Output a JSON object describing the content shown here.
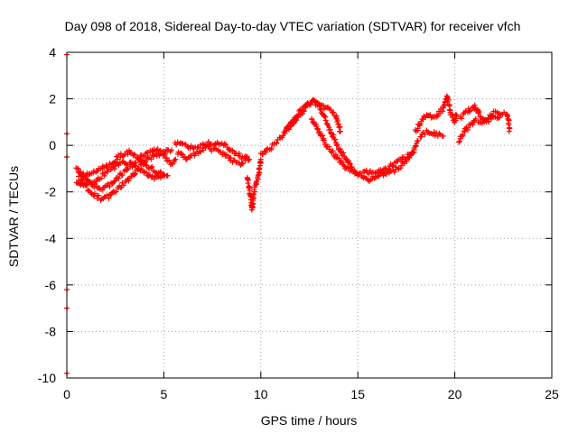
{
  "chart_data": {
    "type": "scatter",
    "title": "Day 098 of 2018, Sidereal Day-to-day VTEC variation (SDTVAR) for receiver vfch",
    "xlabel": "GPS time / hours",
    "ylabel": "SDTVAR / TECUs",
    "xlim": [
      0,
      25
    ],
    "ylim": [
      -10,
      4
    ],
    "xticks": [
      0,
      5,
      10,
      15,
      20,
      25
    ],
    "yticks": [
      -10,
      -8,
      -6,
      -4,
      -2,
      0,
      2,
      4
    ],
    "grid": true,
    "marker": "+",
    "color": "#ff0000",
    "series": [
      {
        "name": "SDTVAR",
        "traces": [
          [
            [
              0.5,
              -1.0
            ],
            [
              0.8,
              -1.3
            ],
            [
              1.2,
              -1.2
            ],
            [
              1.6,
              -1.0
            ],
            [
              2.0,
              -0.9
            ],
            [
              2.4,
              -0.7
            ],
            [
              2.8,
              -0.4
            ],
            [
              3.2,
              -0.3
            ],
            [
              3.6,
              -0.5
            ],
            [
              4.0,
              -0.8
            ],
            [
              4.4,
              -1.0
            ],
            [
              4.8,
              -1.2
            ],
            [
              5.2,
              -1.3
            ]
          ],
          [
            [
              0.5,
              -1.6
            ],
            [
              0.9,
              -1.7
            ],
            [
              1.3,
              -1.6
            ],
            [
              1.7,
              -1.4
            ],
            [
              2.1,
              -1.1
            ],
            [
              2.5,
              -0.9
            ],
            [
              2.9,
              -0.7
            ],
            [
              3.3,
              -0.8
            ],
            [
              3.7,
              -1.0
            ],
            [
              4.1,
              -1.2
            ],
            [
              4.5,
              -1.4
            ],
            [
              4.9,
              -1.3
            ]
          ],
          [
            [
              0.6,
              -1.4
            ],
            [
              1.0,
              -1.8
            ],
            [
              1.4,
              -2.1
            ],
            [
              1.8,
              -2.3
            ],
            [
              2.2,
              -2.2
            ],
            [
              2.6,
              -1.9
            ],
            [
              3.0,
              -1.6
            ],
            [
              3.4,
              -1.3
            ],
            [
              3.8,
              -0.9
            ],
            [
              4.2,
              -0.6
            ],
            [
              4.6,
              -0.4
            ],
            [
              5.0,
              -0.3
            ],
            [
              5.4,
              -0.2
            ]
          ],
          [
            [
              0.6,
              -1.1
            ],
            [
              1.0,
              -1.4
            ],
            [
              1.4,
              -1.7
            ],
            [
              1.8,
              -1.9
            ],
            [
              2.2,
              -1.7
            ],
            [
              2.6,
              -1.4
            ],
            [
              3.0,
              -1.1
            ],
            [
              3.4,
              -0.8
            ],
            [
              3.8,
              -0.5
            ],
            [
              4.2,
              -0.3
            ],
            [
              4.6,
              -0.2
            ],
            [
              5.0,
              -0.4
            ],
            [
              5.4,
              -0.8
            ],
            [
              5.6,
              -0.6
            ]
          ],
          [
            [
              5.6,
              0.1
            ],
            [
              6.0,
              0.0
            ],
            [
              6.5,
              -0.1
            ],
            [
              7.0,
              0.1
            ],
            [
              7.5,
              0.1
            ],
            [
              8.0,
              0.1
            ],
            [
              8.5,
              -0.2
            ],
            [
              9.0,
              -0.5
            ],
            [
              9.4,
              -0.6
            ]
          ],
          [
            [
              5.7,
              -0.3
            ],
            [
              6.2,
              -0.6
            ],
            [
              6.7,
              -0.3
            ],
            [
              7.2,
              -0.1
            ],
            [
              7.7,
              -0.2
            ],
            [
              8.2,
              -0.4
            ],
            [
              8.6,
              -0.7
            ],
            [
              9.0,
              -0.8
            ],
            [
              9.3,
              -0.5
            ]
          ],
          [
            [
              9.3,
              -1.4
            ],
            [
              9.4,
              -1.8
            ],
            [
              9.5,
              -2.3
            ],
            [
              9.55,
              -2.8
            ],
            [
              9.65,
              -2.0
            ],
            [
              9.8,
              -1.5
            ],
            [
              9.9,
              -1.2
            ],
            [
              10.0,
              -0.6
            ]
          ],
          [
            [
              10.0,
              -0.4
            ],
            [
              10.5,
              -0.1
            ],
            [
              11.0,
              0.3
            ],
            [
              11.5,
              0.8
            ],
            [
              12.0,
              1.3
            ],
            [
              12.4,
              1.7
            ],
            [
              12.7,
              1.9
            ],
            [
              13.0,
              1.7
            ],
            [
              13.3,
              1.2
            ],
            [
              13.6,
              0.6
            ],
            [
              14.0,
              -0.1
            ],
            [
              14.4,
              -0.6
            ],
            [
              14.8,
              -1.1
            ],
            [
              15.2,
              -1.3
            ]
          ],
          [
            [
              11.3,
              0.7
            ],
            [
              11.8,
              1.2
            ],
            [
              12.2,
              1.6
            ],
            [
              12.6,
              1.9
            ],
            [
              12.9,
              1.9
            ],
            [
              13.2,
              1.7
            ],
            [
              13.6,
              1.5
            ],
            [
              13.9,
              1.2
            ],
            [
              14.1,
              0.6
            ]
          ],
          [
            [
              12.6,
              1.2
            ],
            [
              13.0,
              0.6
            ],
            [
              13.4,
              0.0
            ],
            [
              13.8,
              -0.4
            ],
            [
              14.2,
              -0.8
            ],
            [
              14.6,
              -1.1
            ],
            [
              15.0,
              -1.3
            ]
          ],
          [
            [
              15.2,
              -1.3
            ],
            [
              15.6,
              -1.5
            ],
            [
              16.0,
              -1.3
            ],
            [
              16.4,
              -1.2
            ],
            [
              16.8,
              -1.1
            ],
            [
              17.2,
              -0.9
            ],
            [
              17.6,
              -0.6
            ],
            [
              17.9,
              -0.2
            ],
            [
              18.1,
              0.2
            ]
          ],
          [
            [
              15.3,
              -1.1
            ],
            [
              15.8,
              -1.2
            ],
            [
              16.3,
              -1.1
            ],
            [
              16.7,
              -0.9
            ],
            [
              17.1,
              -0.7
            ],
            [
              17.5,
              -0.5
            ],
            [
              17.9,
              -0.3
            ]
          ],
          [
            [
              18.0,
              0.6
            ],
            [
              18.3,
              1.1
            ],
            [
              18.6,
              1.3
            ],
            [
              19.0,
              1.2
            ],
            [
              19.4,
              1.6
            ],
            [
              19.6,
              2.1
            ],
            [
              19.8,
              1.4
            ],
            [
              20.0,
              1.0
            ],
            [
              20.1,
              1.3
            ]
          ],
          [
            [
              18.2,
              0.4
            ],
            [
              18.6,
              0.6
            ],
            [
              19.0,
              0.5
            ],
            [
              19.4,
              0.4
            ]
          ],
          [
            [
              20.2,
              0.2
            ],
            [
              20.5,
              0.6
            ],
            [
              20.8,
              0.9
            ],
            [
              21.1,
              1.1
            ],
            [
              21.4,
              1.0
            ],
            [
              21.7,
              1.2
            ],
            [
              22.0,
              1.3
            ],
            [
              22.3,
              1.2
            ]
          ],
          [
            [
              20.3,
              1.2
            ],
            [
              20.7,
              1.5
            ],
            [
              21.0,
              1.7
            ],
            [
              21.3,
              1.3
            ],
            [
              21.7,
              1.0
            ],
            [
              22.0,
              1.4
            ],
            [
              22.4,
              1.4
            ],
            [
              22.7,
              1.3
            ],
            [
              22.8,
              1.0
            ],
            [
              22.8,
              0.6
            ]
          ]
        ],
        "outliers": [
          [
            0.0,
            3.9
          ],
          [
            0.0,
            0.5
          ],
          [
            0.0,
            -0.5
          ],
          [
            0.0,
            -6.2
          ],
          [
            0.0,
            -7.0
          ],
          [
            0.0,
            -9.8
          ]
        ]
      }
    ]
  }
}
